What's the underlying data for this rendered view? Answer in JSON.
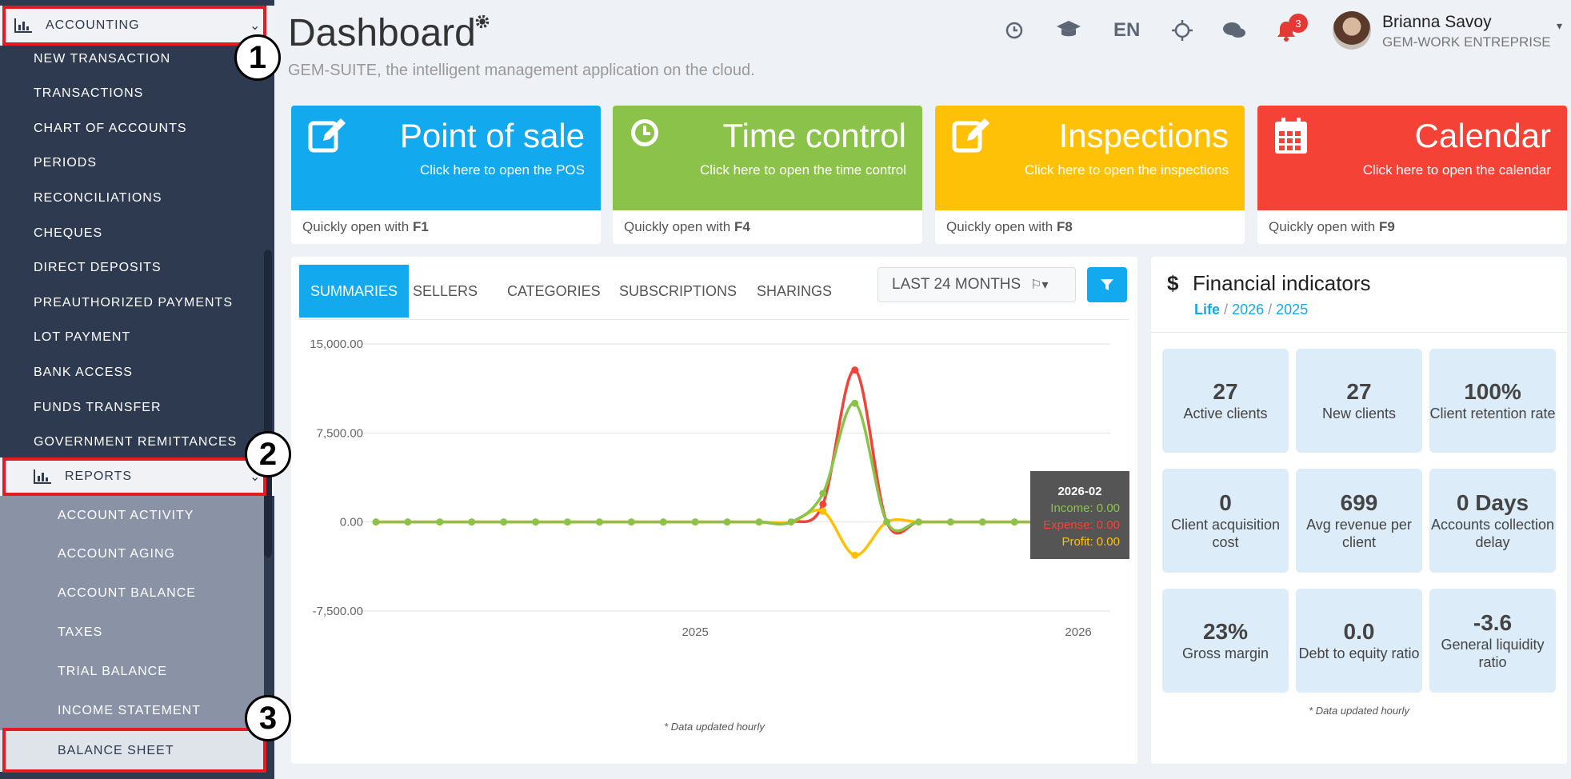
{
  "sidebar": {
    "accounting_label": "ACCOUNTING",
    "items": [
      "NEW TRANSACTION",
      "TRANSACTIONS",
      "CHART OF ACCOUNTS",
      "PERIODS",
      "RECONCILIATIONS",
      "CHEQUES",
      "DIRECT DEPOSITS",
      "PREAUTHORIZED PAYMENTS",
      "LOT PAYMENT",
      "BANK ACCESS",
      "FUNDS TRANSFER",
      "GOVERNMENT REMITTANCES"
    ],
    "reports_label": "REPORTS",
    "report_items": [
      "ACCOUNT ACTIVITY",
      "ACCOUNT AGING",
      "ACCOUNT BALANCE",
      "TAXES",
      "TRIAL BALANCE",
      "INCOME STATEMENT"
    ],
    "selected_item": "BALANCE SHEET"
  },
  "annotations": {
    "one": "1",
    "two": "2",
    "three": "3"
  },
  "header": {
    "title": "Dashboard",
    "subtitle": "GEM-SUITE, the intelligent management application on the cloud.",
    "language": "EN",
    "notification_count": "3",
    "user_name": "Brianna Savoy",
    "company": "GEM-WORK ENTREPRISE"
  },
  "tiles": [
    {
      "title": "Point of sale",
      "desc": "Click here to open the POS",
      "foot": "Quickly open with ",
      "key": "F1",
      "color": "#12a9ef",
      "icon": "edit-icon"
    },
    {
      "title": "Time control",
      "desc": "Click here to open the time control",
      "foot": "Quickly open with ",
      "key": "F4",
      "color": "#8bc34a",
      "icon": "clock-icon"
    },
    {
      "title": "Inspections",
      "desc": "Click here to open the inspections",
      "foot": "Quickly open with ",
      "key": "F8",
      "color": "#ffc107",
      "icon": "edit-icon"
    },
    {
      "title": "Calendar",
      "desc": "Click here to open the calendar",
      "foot": "Quickly open with ",
      "key": "F9",
      "color": "#f44336",
      "icon": "calendar-icon"
    }
  ],
  "chart_panel": {
    "tabs": [
      "SUMMARIES",
      "SELLERS",
      "CATEGORIES",
      "SUBSCRIPTIONS",
      "SHARINGS"
    ],
    "range_label": "LAST 24 MONTHS",
    "footnote": "* Data updated hourly"
  },
  "tooltip": {
    "date": "2026-02",
    "income": "Income: 0.00",
    "expense": "Expense: 0.00",
    "profit": "Profit: 0.00"
  },
  "chart_data": {
    "type": "line",
    "ylim": [
      -7500,
      15000
    ],
    "yticks": [
      "15,000.00",
      "7,500.00",
      "0.00",
      "-7,500.00"
    ],
    "yticks_values": [
      15000,
      7500,
      0,
      -7500
    ],
    "x_labels": [
      {
        "label": "2025",
        "index": 10
      },
      {
        "label": "2026",
        "index": 22
      }
    ],
    "n_points": 24,
    "series": [
      {
        "key": "expense",
        "color": "#f44336",
        "values": [
          0,
          0,
          0,
          0,
          0,
          0,
          0,
          0,
          0,
          0,
          0,
          0,
          0,
          0,
          1500,
          12800,
          0,
          0,
          0,
          0,
          0,
          0,
          0,
          0
        ]
      },
      {
        "key": "profit",
        "color": "#ffc107",
        "values": [
          0,
          0,
          0,
          0,
          0,
          0,
          0,
          0,
          0,
          0,
          0,
          0,
          0,
          0,
          900,
          -2800,
          0,
          0,
          0,
          0,
          0,
          0,
          0,
          0
        ]
      },
      {
        "key": "income",
        "color": "#8bc34a",
        "values": [
          0,
          0,
          0,
          0,
          0,
          0,
          0,
          0,
          0,
          0,
          0,
          0,
          0,
          0,
          2400,
          10000,
          0,
          0,
          0,
          0,
          0,
          0,
          0,
          0
        ]
      }
    ]
  },
  "financial": {
    "title": "Financial indicators",
    "currency_symbol": "$",
    "period_active": "Life",
    "periods": [
      "2026",
      "2025"
    ],
    "separator": "/",
    "footnote": "* Data updated hourly",
    "kpis": [
      {
        "value": "27",
        "label": "Active clients"
      },
      {
        "value": "27",
        "label": "New clients"
      },
      {
        "value": "100%",
        "label": "Client retention rate"
      },
      {
        "value": "0",
        "label": "Client acquisition cost"
      },
      {
        "value": "699",
        "label": "Avg revenue per client"
      },
      {
        "value": "0 Days",
        "label": "Accounts collection delay"
      },
      {
        "value": "23%",
        "label": "Gross margin"
      },
      {
        "value": "0.0",
        "label": "Debt to equity ratio"
      },
      {
        "value": "-3.6",
        "label": "General liquidity ratio"
      }
    ]
  }
}
